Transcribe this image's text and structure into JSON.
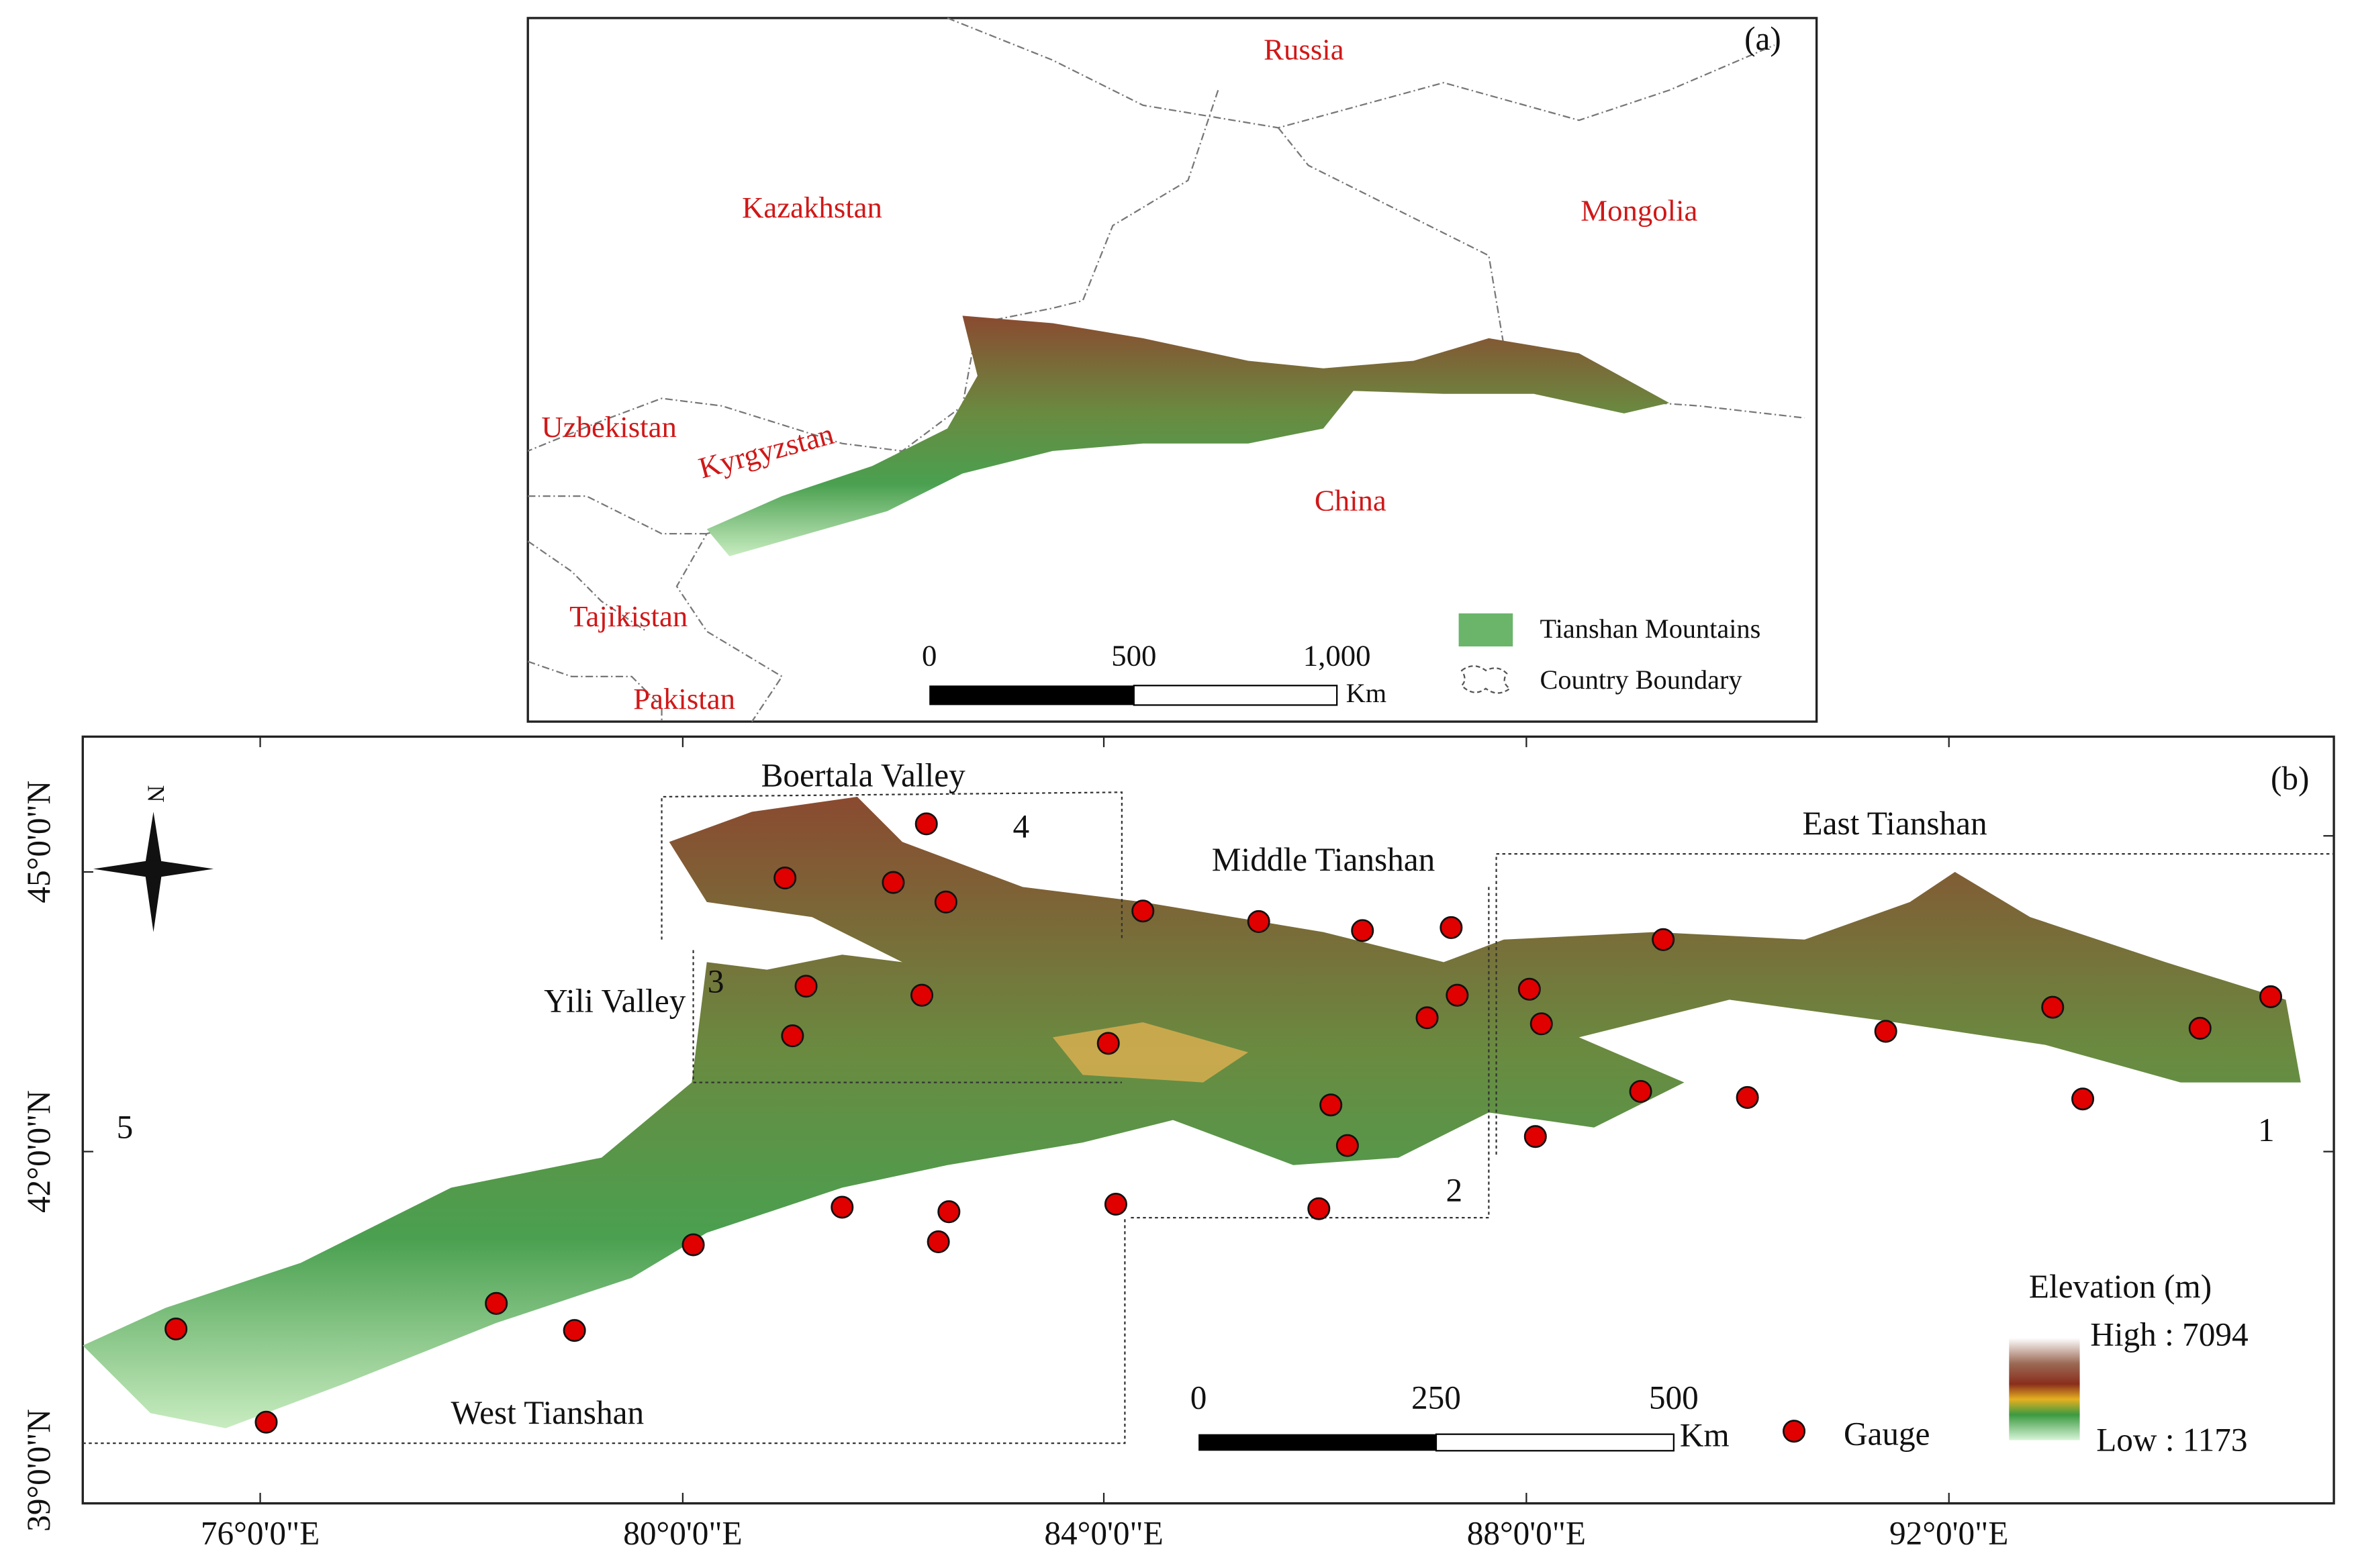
{
  "panel_a": {
    "label": "(a)",
    "countries": [
      "Russia",
      "Kazakhstan",
      "Mongolia",
      "Uzbekistan",
      "Kyrgyzstan",
      "China",
      "Tajikistan",
      "Pakistan"
    ],
    "legend": {
      "mountains": "Tianshan Mountains",
      "boundary": "Country Boundary"
    },
    "scale_bar": {
      "ticks": [
        "0",
        "500",
        "1,000"
      ],
      "unit": "Km"
    }
  },
  "panel_b": {
    "label": "(b)",
    "north": "N",
    "regions": [
      "Boertala Valley",
      "Middle Tianshan",
      "East Tianshan",
      "Yili Valley",
      "West Tianshan"
    ],
    "region_numbers": [
      "1",
      "2",
      "3",
      "4",
      "5"
    ],
    "x_ticks": [
      "76°0'0\"E",
      "80°0'0\"E",
      "84°0'0\"E",
      "88°0'0\"E",
      "92°0'0\"E"
    ],
    "y_ticks": [
      "45°0'0\"N",
      "42°0'0\"N",
      "39°0'0\"N"
    ],
    "scale_bar": {
      "ticks": [
        "0",
        "250",
        "500"
      ],
      "unit": "Km"
    },
    "legend": {
      "gauge": "Gauge",
      "elevation_title": "Elevation (m)",
      "high": "High : 7094",
      "low": "Low : 1173"
    }
  }
}
